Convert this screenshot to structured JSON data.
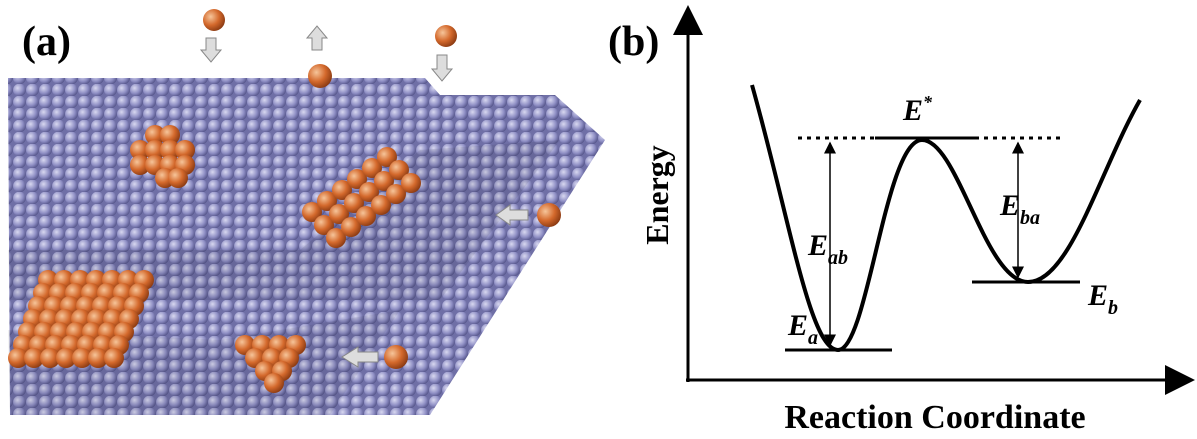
{
  "panel_a": {
    "label": "(a)"
  },
  "panel_b": {
    "label": "(b)",
    "y_axis_label": "Energy",
    "x_axis_label": "Reaction Coordinate",
    "levels": {
      "transition": {
        "base": "E",
        "sup": "*"
      },
      "barrier_ab": {
        "base": "E",
        "sub": "ab"
      },
      "barrier_ba": {
        "base": "E",
        "sub": "ba"
      },
      "state_a": {
        "base": "E",
        "sub": "a"
      },
      "state_b": {
        "base": "E",
        "sub": "b"
      }
    }
  }
}
